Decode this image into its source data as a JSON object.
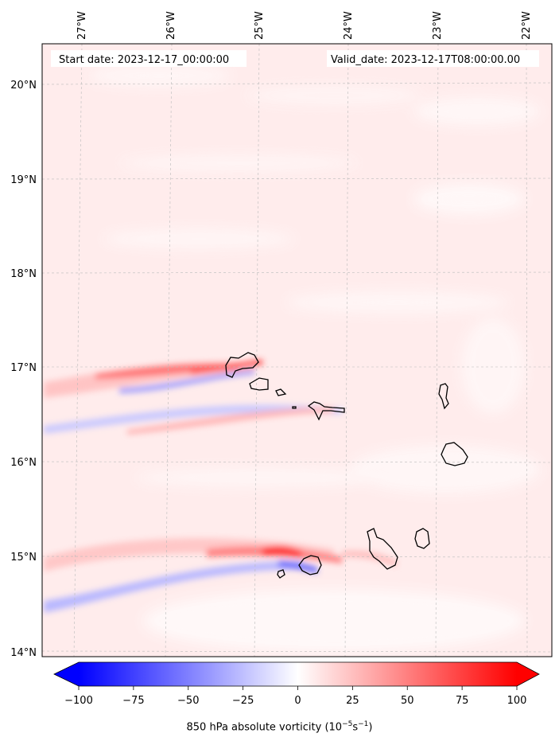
{
  "header": {
    "start_date": "Start date: 2023-12-17_00:00:00",
    "valid_date": "Valid_date: 2023-12-17T08:00:00.00"
  },
  "longitude_labels": [
    "27°W",
    "26°W",
    "25°W",
    "24°W",
    "23°W",
    "22°W"
  ],
  "latitude_labels": [
    "20°N",
    "19°N",
    "18°N",
    "17°N",
    "16°N",
    "15°N",
    "14°N"
  ],
  "colorbar": {
    "min": -100,
    "max": 100,
    "ticks": [
      "−100",
      "−75",
      "−50",
      "−25",
      "0",
      "25",
      "50",
      "75",
      "100"
    ],
    "label_prefix": "850 hPa absolute vorticity (10",
    "label_exp1": "−5",
    "label_mid": "s",
    "label_exp2": "−1",
    "label_suffix": ")",
    "negative_color": "#0000ff",
    "neutral_color": "#ffffff",
    "positive_color": "#ff0000",
    "extend": "both"
  },
  "islands": [
    "Santo Antão",
    "São Vicente",
    "Santa Luzia",
    "São Nicolau",
    "Sal",
    "Boa Vista",
    "Brava",
    "Fogo",
    "Santiago",
    "Maio"
  ]
}
